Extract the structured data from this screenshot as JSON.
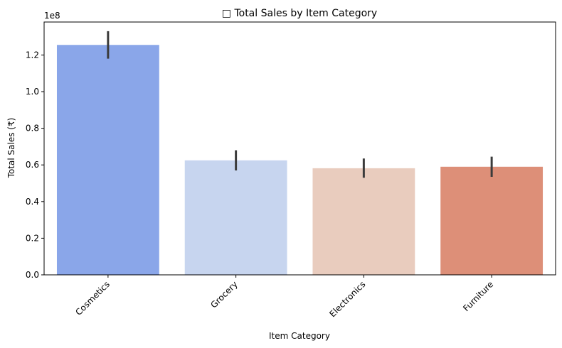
{
  "chart_data": {
    "type": "bar",
    "title": "□ Total Sales by Item Category",
    "xlabel": "Item Category",
    "ylabel": "Total Sales (₹)",
    "offset_label": "1e8",
    "categories": [
      "Cosmetics",
      "Grocery",
      "Electronics",
      "Furniture"
    ],
    "values": [
      1.255,
      0.625,
      0.582,
      0.59
    ],
    "error_low": [
      1.18,
      0.57,
      0.53,
      0.535
    ],
    "error_high": [
      1.33,
      0.68,
      0.635,
      0.645
    ],
    "ylim": [
      0,
      1.38
    ],
    "yticks": [
      0.0,
      0.2,
      0.4,
      0.6,
      0.8,
      1.0,
      1.2
    ],
    "ytick_labels": [
      "0.0",
      "0.2",
      "0.4",
      "0.6",
      "0.8",
      "1.0",
      "1.2"
    ],
    "grid": false,
    "colors": [
      "#8aa6e9",
      "#c7d5ef",
      "#e9ccbe",
      "#dd8f78"
    ],
    "error_color": "#3b3b3b"
  }
}
